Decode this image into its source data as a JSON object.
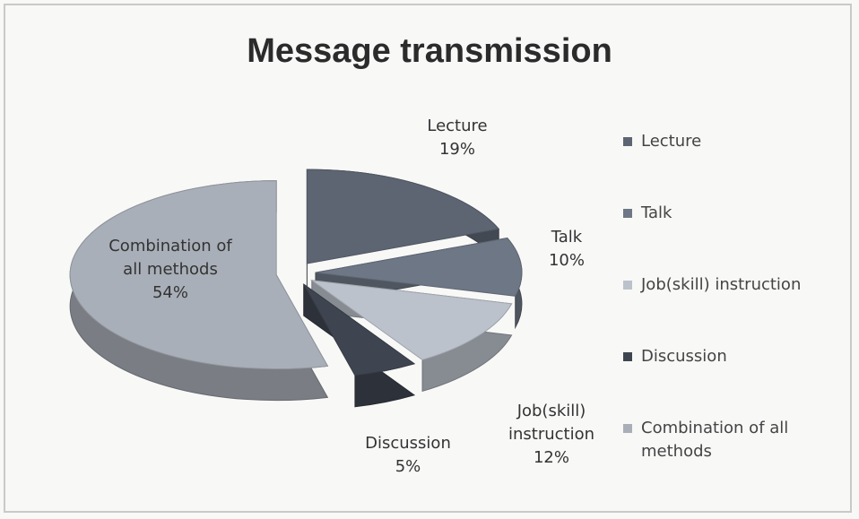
{
  "chart_data": {
    "type": "pie",
    "title": "Message transmission",
    "categories": [
      "Lecture",
      "Talk",
      "Job(skill) instruction",
      "Discussion",
      "Combination of all methods"
    ],
    "values": [
      19,
      10,
      12,
      5,
      54
    ],
    "value_labels": [
      "19%",
      "10%",
      "12%",
      "5%",
      "54%"
    ],
    "colors": [
      "#5d6573",
      "#6e7786",
      "#bcc2cb",
      "#3f4550",
      "#a9afb8"
    ],
    "legend": "right"
  }
}
